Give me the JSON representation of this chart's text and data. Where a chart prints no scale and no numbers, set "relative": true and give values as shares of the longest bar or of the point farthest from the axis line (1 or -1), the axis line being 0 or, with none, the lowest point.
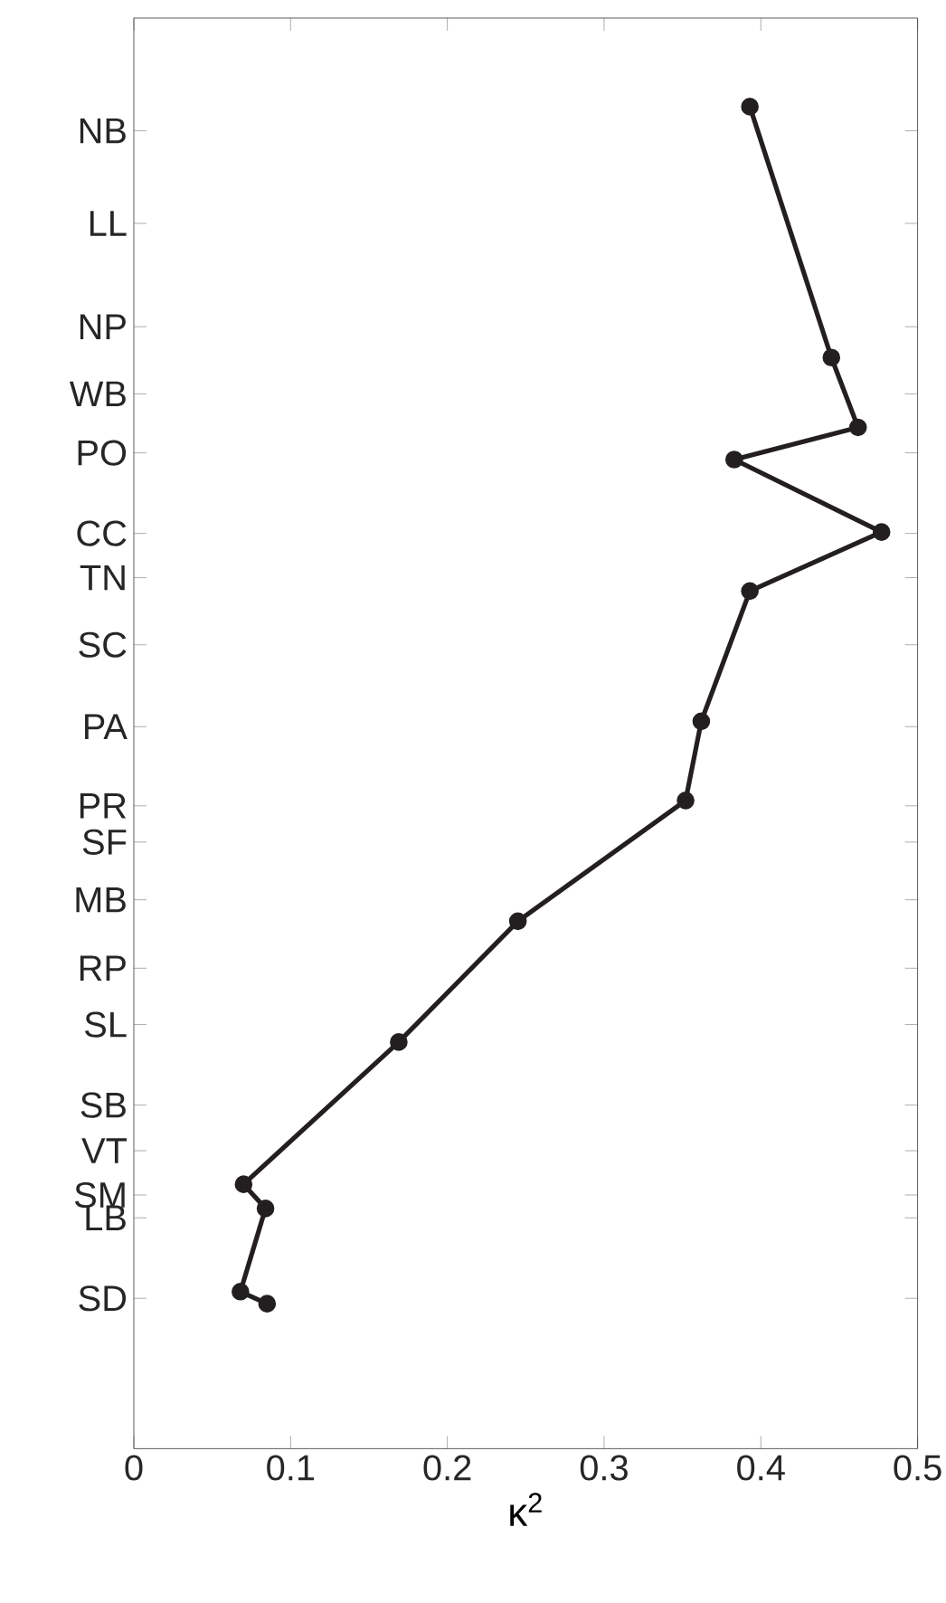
{
  "chart_data": {
    "type": "line",
    "xlabel": "κ$^{2}$",
    "relative": true,
    "x": [
      0.393,
      0.445,
      0.462,
      0.383,
      0.477,
      0.393,
      0.362,
      0.352,
      0.245,
      0.169,
      0.07,
      0.084,
      0.068,
      0.085
    ],
    "series": [
      {
        "color": "#231f20",
        "values": [
          1,
          0.813,
          0.761,
          0.737,
          0.683,
          0.639,
          0.542,
          0.483,
          0.393,
          0.303,
          0.197,
          0.179,
          0.117,
          0.108
        ]
      }
    ],
    "xlim": [
      0,
      0.5
    ],
    "xticks": [
      0,
      0.1,
      0.2,
      0.3,
      0.4,
      0.5
    ],
    "ref_lines": [
      {
        "axis": "y",
        "value": 0.982,
        "label": "NB"
      },
      {
        "axis": "y",
        "value": 0.913,
        "label": "LL"
      },
      {
        "axis": "y",
        "value": 0.836,
        "label": "NP"
      },
      {
        "axis": "y",
        "value": 0.786,
        "label": "WB"
      },
      {
        "axis": "y",
        "value": 0.742,
        "label": "PO"
      },
      {
        "axis": "y",
        "value": 0.682,
        "label": "CC"
      },
      {
        "axis": "y",
        "value": 0.649,
        "label": "TN"
      },
      {
        "axis": "y",
        "value": 0.599,
        "label": "SC"
      },
      {
        "axis": "y",
        "value": 0.538,
        "label": "PA"
      },
      {
        "axis": "y",
        "value": 0.479,
        "label": "PR"
      },
      {
        "axis": "y",
        "value": 0.452,
        "label": "SF"
      },
      {
        "axis": "y",
        "value": 0.409,
        "label": "MB"
      },
      {
        "axis": "y",
        "value": 0.358,
        "label": "RP"
      },
      {
        "axis": "y",
        "value": 0.316,
        "label": "SL"
      },
      {
        "axis": "y",
        "value": 0.256,
        "label": "SB"
      },
      {
        "axis": "y",
        "value": 0.222,
        "label": "VT"
      },
      {
        "axis": "y",
        "value": 0.189,
        "label": "SM"
      },
      {
        "axis": "y",
        "value": 0.172,
        "label": "LB"
      },
      {
        "axis": "y",
        "value": 0.112,
        "label": "SD"
      }
    ],
    "marker": "circle",
    "line_style": "solid",
    "grid": false
  }
}
